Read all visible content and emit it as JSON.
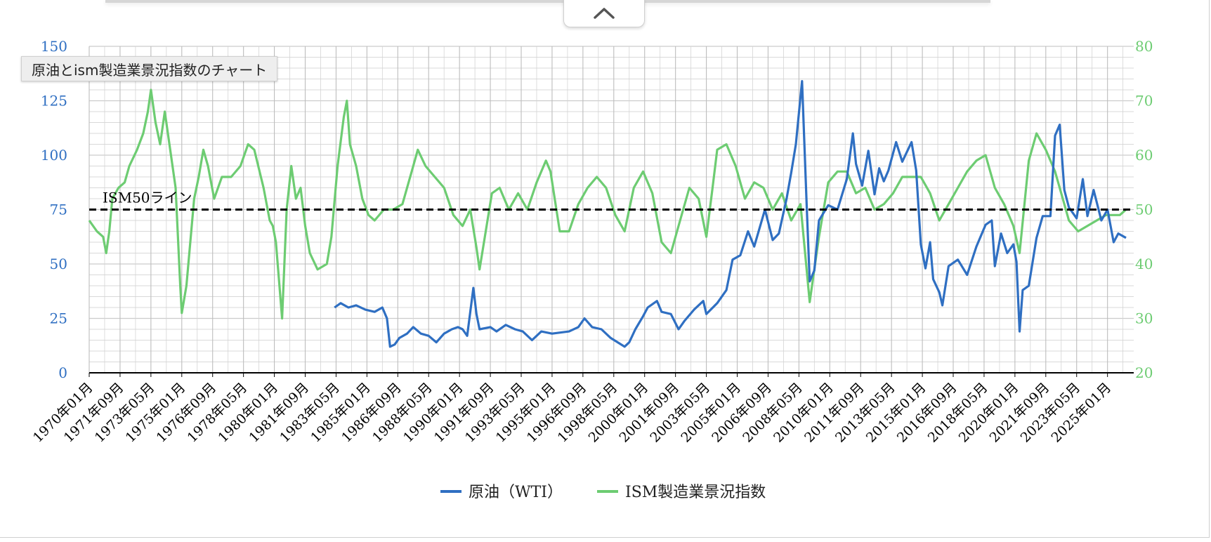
{
  "tooltip": {
    "text": "原油とism製造業景況指数のチャート"
  },
  "toggle": {
    "icon": "chevron-up-icon"
  },
  "colors": {
    "wti": "#2f6fc2",
    "ism": "#6dcc72",
    "grid": "#cccccc",
    "axis": "#000000",
    "refline": "#000000"
  },
  "chart_data": {
    "type": "line",
    "title": "",
    "x_ticks": [
      "1970年01月",
      "1971年09月",
      "1973年05月",
      "1975年01月",
      "1976年09月",
      "1978年05月",
      "1980年01月",
      "1981年09月",
      "1983年05月",
      "1985年01月",
      "1986年09月",
      "1988年05月",
      "1990年01月",
      "1991年09月",
      "1993年05月",
      "1995年01月",
      "1996年09月",
      "1998年05月",
      "2000年01月",
      "2001年09月",
      "2003年05月",
      "2005年01月",
      "2006年09月",
      "2008年05月",
      "2010年01月",
      "2011年09月",
      "2013年05月",
      "2015年01月",
      "2016年09月",
      "2018年05月",
      "2020年01月",
      "2021年09月",
      "2023年05月",
      "2025年01月"
    ],
    "x_range": [
      "1970年01月",
      "2026年06月"
    ],
    "y_left": {
      "min": 0,
      "max": 150,
      "ticks": [
        "0",
        "25",
        "50",
        "75",
        "100",
        "125",
        "150"
      ]
    },
    "y_right": {
      "min": 20,
      "max": 80,
      "ticks": [
        "20",
        "30",
        "40",
        "50",
        "60",
        "70",
        "80"
      ]
    },
    "grid": true,
    "legend_position": "bottom",
    "reference_line": {
      "label": "ISM50ライン",
      "axis": "right",
      "value": 50
    },
    "series": [
      {
        "name": "原油（WTI）",
        "axis": "left",
        "points": [
          [
            "1983-04",
            30
          ],
          [
            "1983-08",
            32
          ],
          [
            "1984-01",
            30
          ],
          [
            "1984-06",
            31
          ],
          [
            "1984-12",
            29
          ],
          [
            "1985-06",
            28
          ],
          [
            "1985-11",
            30
          ],
          [
            "1986-02",
            25
          ],
          [
            "1986-04",
            12
          ],
          [
            "1986-07",
            13
          ],
          [
            "1986-10",
            16
          ],
          [
            "1987-03",
            18
          ],
          [
            "1987-07",
            21
          ],
          [
            "1987-12",
            18
          ],
          [
            "1988-05",
            17
          ],
          [
            "1988-10",
            14
          ],
          [
            "1989-03",
            18
          ],
          [
            "1989-08",
            20
          ],
          [
            "1989-12",
            21
          ],
          [
            "1990-03",
            20
          ],
          [
            "1990-06",
            17
          ],
          [
            "1990-08",
            28
          ],
          [
            "1990-10",
            39
          ],
          [
            "1990-12",
            27
          ],
          [
            "1991-02",
            20
          ],
          [
            "1991-09",
            21
          ],
          [
            "1992-01",
            19
          ],
          [
            "1992-07",
            22
          ],
          [
            "1993-01",
            20
          ],
          [
            "1993-06",
            19
          ],
          [
            "1993-12",
            15
          ],
          [
            "1994-06",
            19
          ],
          [
            "1995-01",
            18
          ],
          [
            "1995-12",
            19
          ],
          [
            "1996-06",
            21
          ],
          [
            "1996-10",
            25
          ],
          [
            "1997-03",
            21
          ],
          [
            "1997-09",
            20
          ],
          [
            "1998-03",
            16
          ],
          [
            "1998-12",
            12
          ],
          [
            "1999-03",
            14
          ],
          [
            "1999-07",
            20
          ],
          [
            "1999-12",
            26
          ],
          [
            "2000-03",
            30
          ],
          [
            "2000-09",
            33
          ],
          [
            "2000-12",
            28
          ],
          [
            "2001-06",
            27
          ],
          [
            "2001-11",
            20
          ],
          [
            "2002-03",
            24
          ],
          [
            "2002-09",
            29
          ],
          [
            "2003-03",
            33
          ],
          [
            "2003-05",
            27
          ],
          [
            "2003-12",
            32
          ],
          [
            "2004-06",
            38
          ],
          [
            "2004-10",
            52
          ],
          [
            "2005-03",
            54
          ],
          [
            "2005-08",
            65
          ],
          [
            "2005-12",
            58
          ],
          [
            "2006-07",
            75
          ],
          [
            "2006-12",
            61
          ],
          [
            "2007-04",
            64
          ],
          [
            "2007-09",
            80
          ],
          [
            "2007-12",
            92
          ],
          [
            "2008-03",
            105
          ],
          [
            "2008-07",
            134
          ],
          [
            "2008-10",
            77
          ],
          [
            "2008-12",
            42
          ],
          [
            "2009-03",
            47
          ],
          [
            "2009-06",
            70
          ],
          [
            "2009-12",
            77
          ],
          [
            "2010-06",
            75
          ],
          [
            "2010-12",
            89
          ],
          [
            "2011-04",
            110
          ],
          [
            "2011-06",
            96
          ],
          [
            "2011-10",
            86
          ],
          [
            "2012-02",
            102
          ],
          [
            "2012-06",
            82
          ],
          [
            "2012-09",
            94
          ],
          [
            "2012-12",
            88
          ],
          [
            "2013-03",
            93
          ],
          [
            "2013-08",
            106
          ],
          [
            "2013-12",
            97
          ],
          [
            "2014-06",
            106
          ],
          [
            "2014-09",
            93
          ],
          [
            "2014-12",
            59
          ],
          [
            "2015-03",
            48
          ],
          [
            "2015-06",
            60
          ],
          [
            "2015-08",
            43
          ],
          [
            "2015-12",
            37
          ],
          [
            "2016-02",
            31
          ],
          [
            "2016-06",
            49
          ],
          [
            "2016-12",
            52
          ],
          [
            "2017-06",
            45
          ],
          [
            "2017-12",
            58
          ],
          [
            "2018-06",
            68
          ],
          [
            "2018-10",
            70
          ],
          [
            "2018-12",
            49
          ],
          [
            "2019-04",
            64
          ],
          [
            "2019-08",
            55
          ],
          [
            "2019-12",
            59
          ],
          [
            "2020-02",
            51
          ],
          [
            "2020-04",
            19
          ],
          [
            "2020-06",
            38
          ],
          [
            "2020-10",
            40
          ],
          [
            "2021-03",
            62
          ],
          [
            "2021-07",
            72
          ],
          [
            "2021-12",
            72
          ],
          [
            "2022-03",
            109
          ],
          [
            "2022-06",
            114
          ],
          [
            "2022-09",
            84
          ],
          [
            "2022-12",
            76
          ],
          [
            "2023-05",
            71
          ],
          [
            "2023-09",
            89
          ],
          [
            "2023-12",
            72
          ],
          [
            "2024-04",
            84
          ],
          [
            "2024-09",
            70
          ],
          [
            "2025-01",
            75
          ],
          [
            "2025-05",
            60
          ],
          [
            "2025-08",
            64
          ],
          [
            "2026-01",
            62
          ]
        ]
      },
      {
        "name": "ISM製造業景況指数",
        "axis": "right",
        "points": [
          [
            "1970-01",
            48
          ],
          [
            "1970-06",
            46
          ],
          [
            "1970-10",
            45
          ],
          [
            "1970-12",
            42
          ],
          [
            "1971-02",
            46
          ],
          [
            "1971-04",
            52
          ],
          [
            "1971-08",
            54
          ],
          [
            "1971-12",
            55
          ],
          [
            "1972-03",
            58
          ],
          [
            "1972-08",
            61
          ],
          [
            "1972-12",
            64
          ],
          [
            "1973-03",
            68
          ],
          [
            "1973-05",
            72
          ],
          [
            "1973-08",
            66
          ],
          [
            "1973-11",
            62
          ],
          [
            "1974-02",
            68
          ],
          [
            "1974-05",
            62
          ],
          [
            "1974-09",
            54
          ],
          [
            "1974-12",
            36
          ],
          [
            "1975-01",
            31
          ],
          [
            "1975-04",
            36
          ],
          [
            "1975-09",
            52
          ],
          [
            "1975-12",
            56
          ],
          [
            "1976-03",
            61
          ],
          [
            "1976-06",
            58
          ],
          [
            "1976-10",
            52
          ],
          [
            "1977-03",
            56
          ],
          [
            "1977-09",
            56
          ],
          [
            "1978-03",
            58
          ],
          [
            "1978-08",
            62
          ],
          [
            "1978-12",
            61
          ],
          [
            "1979-06",
            54
          ],
          [
            "1979-10",
            48
          ],
          [
            "1979-12",
            47
          ],
          [
            "1980-02",
            44
          ],
          [
            "1980-06",
            30
          ],
          [
            "1980-09",
            50
          ],
          [
            "1980-12",
            58
          ],
          [
            "1981-03",
            52
          ],
          [
            "1981-06",
            54
          ],
          [
            "1981-09",
            47
          ],
          [
            "1981-12",
            42
          ],
          [
            "1982-05",
            39
          ],
          [
            "1982-11",
            40
          ],
          [
            "1983-02",
            45
          ],
          [
            "1983-06",
            58
          ],
          [
            "1983-10",
            67
          ],
          [
            "1983-12",
            70
          ],
          [
            "1984-02",
            62
          ],
          [
            "1984-06",
            58
          ],
          [
            "1984-10",
            52
          ],
          [
            "1985-02",
            49
          ],
          [
            "1985-06",
            48
          ],
          [
            "1985-12",
            50
          ],
          [
            "1986-06",
            50
          ],
          [
            "1986-12",
            51
          ],
          [
            "1987-06",
            57
          ],
          [
            "1987-10",
            61
          ],
          [
            "1988-03",
            58
          ],
          [
            "1988-09",
            56
          ],
          [
            "1989-03",
            54
          ],
          [
            "1989-09",
            49
          ],
          [
            "1990-03",
            47
          ],
          [
            "1990-08",
            50
          ],
          [
            "1990-12",
            43
          ],
          [
            "1991-02",
            39
          ],
          [
            "1991-06",
            46
          ],
          [
            "1991-10",
            53
          ],
          [
            "1992-03",
            54
          ],
          [
            "1992-09",
            50
          ],
          [
            "1993-03",
            53
          ],
          [
            "1993-09",
            50
          ],
          [
            "1994-03",
            55
          ],
          [
            "1994-09",
            59
          ],
          [
            "1994-12",
            57
          ],
          [
            "1995-06",
            46
          ],
          [
            "1995-12",
            46
          ],
          [
            "1996-06",
            51
          ],
          [
            "1996-12",
            54
          ],
          [
            "1997-06",
            56
          ],
          [
            "1997-12",
            54
          ],
          [
            "1998-06",
            49
          ],
          [
            "1998-12",
            46
          ],
          [
            "1999-06",
            54
          ],
          [
            "1999-12",
            57
          ],
          [
            "2000-06",
            53
          ],
          [
            "2000-12",
            44
          ],
          [
            "2001-06",
            42
          ],
          [
            "2001-12",
            48
          ],
          [
            "2002-06",
            54
          ],
          [
            "2002-12",
            52
          ],
          [
            "2003-05",
            45
          ],
          [
            "2003-09",
            54
          ],
          [
            "2003-12",
            61
          ],
          [
            "2004-06",
            62
          ],
          [
            "2004-12",
            58
          ],
          [
            "2005-06",
            52
          ],
          [
            "2005-12",
            55
          ],
          [
            "2006-06",
            54
          ],
          [
            "2006-12",
            50
          ],
          [
            "2007-06",
            53
          ],
          [
            "2007-12",
            48
          ],
          [
            "2008-06",
            51
          ],
          [
            "2008-12",
            33
          ],
          [
            "2009-06",
            45
          ],
          [
            "2009-12",
            55
          ],
          [
            "2010-06",
            57
          ],
          [
            "2010-12",
            57
          ],
          [
            "2011-06",
            53
          ],
          [
            "2011-12",
            54
          ],
          [
            "2012-06",
            50
          ],
          [
            "2012-12",
            51
          ],
          [
            "2013-06",
            53
          ],
          [
            "2013-12",
            56
          ],
          [
            "2014-06",
            56
          ],
          [
            "2014-12",
            56
          ],
          [
            "2015-06",
            53
          ],
          [
            "2015-12",
            48
          ],
          [
            "2016-06",
            51
          ],
          [
            "2016-12",
            54
          ],
          [
            "2017-06",
            57
          ],
          [
            "2017-12",
            59
          ],
          [
            "2018-06",
            60
          ],
          [
            "2018-12",
            54
          ],
          [
            "2019-06",
            51
          ],
          [
            "2019-12",
            47
          ],
          [
            "2020-04",
            42
          ],
          [
            "2020-10",
            59
          ],
          [
            "2021-03",
            64
          ],
          [
            "2021-09",
            61
          ],
          [
            "2022-03",
            57
          ],
          [
            "2022-09",
            51
          ],
          [
            "2022-12",
            48
          ],
          [
            "2023-06",
            46
          ],
          [
            "2023-12",
            47
          ],
          [
            "2024-06",
            48
          ],
          [
            "2024-12",
            49
          ],
          [
            "2025-03",
            49
          ],
          [
            "2025-09",
            49
          ],
          [
            "2026-01",
            50
          ]
        ]
      }
    ]
  }
}
